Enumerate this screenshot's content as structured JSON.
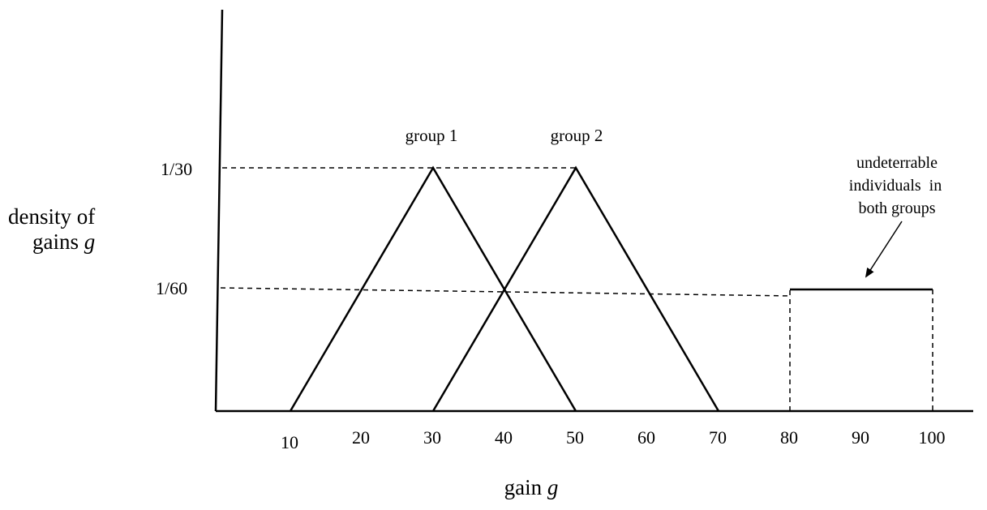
{
  "chart_data": {
    "type": "line",
    "xlabel": "gain g",
    "ylabel_lines": [
      "density of",
      "gains g"
    ],
    "x_ticks": [
      10,
      20,
      30,
      40,
      50,
      60,
      70,
      80,
      90,
      100
    ],
    "y_ticks": [
      {
        "label": "1/30",
        "value": 0.0333333
      },
      {
        "label": "1/60",
        "value": 0.0166667
      }
    ],
    "series": [
      {
        "name": "group 1",
        "shape": "triangle",
        "points": [
          [
            10,
            0
          ],
          [
            30,
            0.0333333
          ],
          [
            50,
            0
          ]
        ]
      },
      {
        "name": "group 2",
        "shape": "triangle",
        "points": [
          [
            30,
            0
          ],
          [
            50,
            0.0333333
          ],
          [
            70,
            0
          ]
        ]
      },
      {
        "name": "undeterrable individuals in both groups",
        "shape": "uniform",
        "points": [
          [
            80,
            0
          ],
          [
            80,
            0.0166667
          ],
          [
            100,
            0.0166667
          ],
          [
            100,
            0
          ]
        ]
      }
    ],
    "annotation_lines": [
      "undeterrable",
      "individuals  in",
      "both groups"
    ],
    "xlim": [
      0,
      110
    ],
    "ylim": [
      0,
      0.05
    ]
  }
}
